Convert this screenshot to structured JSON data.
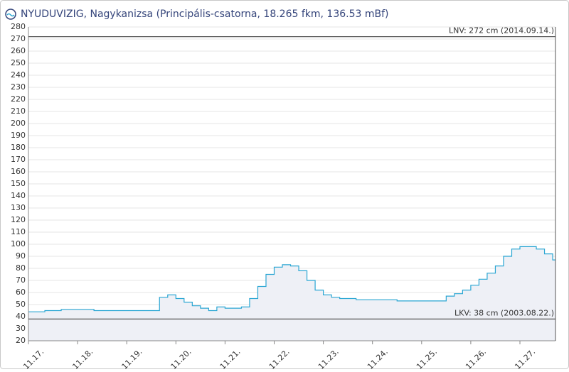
{
  "chart_data": {
    "type": "step-area",
    "title": "NYUDUVIZIG, Nagykanizsa (Principális-csatorna, 18.265 fkm, 136.53 mBf)",
    "categories": [
      "11.17.",
      null,
      null,
      null,
      null,
      null,
      "11.18.",
      null,
      null,
      null,
      null,
      null,
      "11.19.",
      null,
      null,
      null,
      null,
      null,
      "11.20.",
      null,
      null,
      null,
      null,
      null,
      "11.21.",
      null,
      null,
      null,
      null,
      null,
      "11.22.",
      null,
      null,
      null,
      null,
      null,
      "11.23.",
      null,
      null,
      null,
      null,
      null,
      "11.24.",
      null,
      null,
      null,
      null,
      null,
      "11.25.",
      null,
      null,
      null,
      null,
      null,
      "11.26.",
      null,
      null,
      null,
      null,
      null,
      "11.27.",
      null,
      null,
      null,
      null
    ],
    "values": [
      44,
      44,
      45,
      45,
      46,
      46,
      46,
      46,
      45,
      45,
      45,
      45,
      45,
      45,
      45,
      45,
      56,
      58,
      55,
      52,
      49,
      47,
      45,
      48,
      47,
      47,
      48,
      55,
      65,
      75,
      81,
      83,
      82,
      78,
      70,
      62,
      58,
      56,
      55,
      55,
      54,
      54,
      54,
      54,
      54,
      53,
      53,
      53,
      53,
      53,
      53,
      57,
      59,
      62,
      66,
      71,
      76,
      82,
      90,
      96,
      98,
      98,
      96,
      92,
      87
    ],
    "color": "#2aa6d3",
    "area_color": "#eef0f6",
    "ylim": [
      20,
      280
    ],
    "yticks": [
      20,
      30,
      40,
      50,
      60,
      70,
      80,
      90,
      100,
      110,
      120,
      130,
      140,
      150,
      160,
      170,
      180,
      190,
      200,
      210,
      220,
      230,
      240,
      250,
      260,
      270,
      280
    ],
    "grid": true,
    "reference_lines": [
      {
        "value": 272,
        "label": "LNV: 272 cm (2014.09.14.)"
      },
      {
        "value": 38,
        "label": "LKV: 38 cm (2003.08.22.)"
      }
    ]
  }
}
